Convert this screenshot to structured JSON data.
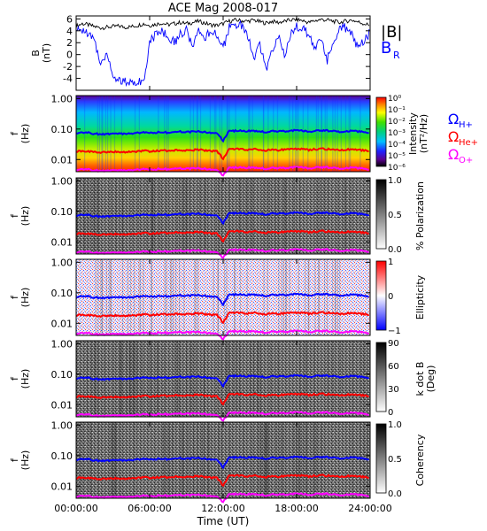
{
  "chart_data": [
    {
      "type": "line",
      "title": "ACE Mag 2008-017",
      "ylabel": "B",
      "yunit": "(nT)",
      "ylim": [
        -6,
        6.5
      ],
      "yticks": [
        "6",
        "4",
        "2",
        "0",
        "-2",
        "-4"
      ],
      "xlim_hours": [
        0,
        24
      ],
      "series": [
        {
          "name": "|B|",
          "color": "#000000",
          "x": [
            0,
            0.5,
            1,
            1.5,
            2,
            2.5,
            3,
            3.5,
            4,
            4.5,
            5,
            5.5,
            6,
            6.5,
            7,
            7.5,
            8,
            8.5,
            9,
            9.5,
            10,
            10.5,
            11,
            11.5,
            12,
            12.5,
            13,
            13.5,
            14,
            14.5,
            15,
            15.5,
            16,
            16.5,
            17,
            17.5,
            18,
            18.5,
            19,
            19.5,
            20,
            20.5,
            21,
            21.5,
            22,
            22.5,
            23,
            23.5,
            24
          ],
          "values": [
            4.8,
            5.2,
            5.0,
            4.7,
            4.5,
            4.6,
            4.7,
            4.8,
            4.6,
            4.7,
            4.9,
            5.2,
            4.9,
            5.1,
            5.3,
            5.0,
            5.2,
            5.4,
            5.2,
            5.4,
            5.6,
            5.3,
            5.0,
            4.9,
            5.2,
            5.6,
            5.8,
            5.7,
            5.6,
            5.8,
            5.5,
            5.3,
            5.6,
            5.4,
            5.6,
            5.8,
            5.9,
            5.7,
            5.4,
            5.7,
            5.9,
            5.8,
            5.6,
            5.4,
            5.6,
            5.8,
            5.5,
            5.2,
            4.9
          ]
        },
        {
          "name": "B_R",
          "label_main": "B",
          "label_sub": "R",
          "color": "#0000ff",
          "x": [
            0,
            0.5,
            1,
            1.5,
            2,
            2.5,
            3,
            3.5,
            4,
            4.5,
            5,
            5.5,
            6,
            6.5,
            7,
            7.5,
            8,
            8.5,
            9,
            9.5,
            10,
            10.5,
            11,
            11.5,
            12,
            12.5,
            13,
            13.5,
            14,
            14.5,
            15,
            15.5,
            16,
            16.5,
            17,
            17.5,
            18,
            18.5,
            19,
            19.5,
            20,
            20.5,
            21,
            21.5,
            22,
            22.5,
            23,
            23.5,
            24
          ],
          "values": [
            3.8,
            4.2,
            3.6,
            2.2,
            -1.5,
            0.5,
            -3.6,
            -4.3,
            -4.6,
            -4.5,
            -4.4,
            -4.6,
            2.0,
            3.5,
            4.0,
            3.2,
            2.0,
            3.5,
            4.2,
            1.0,
            3.8,
            2.5,
            4.1,
            3.5,
            1.0,
            4.5,
            5.0,
            4.8,
            3.0,
            -0.5,
            1.5,
            -2.5,
            0.5,
            3.5,
            0.0,
            3.2,
            4.8,
            4.2,
            3.5,
            1.0,
            3.0,
            -1.0,
            2.2,
            4.5,
            4.5,
            3.5,
            1.2,
            2.5,
            3.8
          ]
        }
      ]
    },
    {
      "type": "heatmap",
      "ylabel": "f",
      "yunit": "(Hz)",
      "yscale": "log",
      "ylim": [
        0.004,
        1.2
      ],
      "yticks": [
        "1.00",
        "0.10",
        "0.01"
      ],
      "colorbar": {
        "label_line1": "Intensity",
        "label_line2": "(nT²/Hz)",
        "scale": "log",
        "ticks": [
          "10⁰",
          "10⁻¹",
          "10⁻²",
          "10⁻³",
          "10⁻⁴",
          "10⁻⁵",
          "10⁻⁶"
        ],
        "colormap": "rainbow"
      },
      "gyrofrequency_legend": [
        {
          "symbol": "Ω",
          "subscript": "H+",
          "color": "#0000ff"
        },
        {
          "symbol": "Ω",
          "subscript": "He+",
          "color": "#ff0000"
        },
        {
          "symbol": "Ω",
          "subscript": "O+",
          "color": "#ff00ff"
        }
      ]
    },
    {
      "type": "heatmap",
      "ylabel": "f",
      "yunit": "(Hz)",
      "yscale": "log",
      "yticks": [
        "1.00",
        "0.10",
        "0.01"
      ],
      "colorbar": {
        "label_line1": "% Polarization",
        "label_line2": "",
        "ticks": [
          "1.0",
          "0.5",
          "0.0"
        ],
        "colormap": "gray"
      }
    },
    {
      "type": "heatmap",
      "ylabel": "f",
      "yunit": "(Hz)",
      "yscale": "log",
      "yticks": [
        "1.00",
        "0.10",
        "0.01"
      ],
      "colorbar": {
        "label_line1": "Ellipticity",
        "label_line2": "",
        "ticks": [
          "1",
          "0",
          "−1"
        ],
        "colormap": "bwr"
      }
    },
    {
      "type": "heatmap",
      "ylabel": "f",
      "yunit": "(Hz)",
      "yscale": "log",
      "yticks": [
        "1.00",
        "0.10",
        "0.01"
      ],
      "colorbar": {
        "label_line1": "k dot B",
        "label_line2": "(Deg)",
        "ticks": [
          "90",
          "60",
          "30",
          "0"
        ],
        "colormap": "gray"
      }
    },
    {
      "type": "heatmap",
      "ylabel": "f",
      "yunit": "(Hz)",
      "yscale": "log",
      "yticks": [
        "1.00",
        "0.10",
        "0.01"
      ],
      "colorbar": {
        "label_line1": "Coherency",
        "label_line2": "",
        "ticks": [
          "1.0",
          "0.5",
          "0.0"
        ],
        "colormap": "gray"
      },
      "xlabel": "Time (UT)",
      "xticks": [
        "00:00:00",
        "06:00:00",
        "12:00:00",
        "18:00:00",
        "24:00:00"
      ]
    }
  ],
  "gyro_lines": {
    "x_hours": [
      0,
      0.5,
      1,
      1.5,
      2,
      2.5,
      3,
      3.5,
      4,
      4.5,
      5,
      5.5,
      6,
      6.5,
      7,
      7.5,
      8,
      8.5,
      9,
      9.5,
      10,
      10.5,
      11,
      11.5,
      12,
      12.5,
      13,
      13.5,
      14,
      14.5,
      15,
      15.5,
      16,
      16.5,
      17,
      17.5,
      18,
      18.5,
      19,
      19.5,
      20,
      20.5,
      21,
      21.5,
      22,
      22.5,
      23,
      23.5,
      24
    ],
    "H_plus_hz": [
      0.072,
      0.078,
      0.075,
      0.07,
      0.068,
      0.069,
      0.071,
      0.072,
      0.07,
      0.071,
      0.074,
      0.078,
      0.074,
      0.077,
      0.08,
      0.076,
      0.079,
      0.082,
      0.079,
      0.082,
      0.085,
      0.08,
      0.076,
      0.074,
      0.04,
      0.085,
      0.088,
      0.087,
      0.085,
      0.088,
      0.083,
      0.08,
      0.085,
      0.082,
      0.085,
      0.088,
      0.09,
      0.087,
      0.082,
      0.087,
      0.09,
      0.088,
      0.085,
      0.082,
      0.085,
      0.088,
      0.083,
      0.079,
      0.074
    ],
    "He_plus_hz": [
      0.018,
      0.0195,
      0.0188,
      0.0175,
      0.017,
      0.0172,
      0.0178,
      0.018,
      0.0175,
      0.0178,
      0.0185,
      0.0195,
      0.0185,
      0.0192,
      0.02,
      0.019,
      0.0198,
      0.0205,
      0.0198,
      0.0205,
      0.0212,
      0.02,
      0.019,
      0.0185,
      0.01,
      0.0212,
      0.022,
      0.0218,
      0.0212,
      0.022,
      0.0208,
      0.02,
      0.0212,
      0.0205,
      0.0212,
      0.022,
      0.0225,
      0.0218,
      0.0205,
      0.0218,
      0.0225,
      0.022,
      0.0212,
      0.0205,
      0.0212,
      0.022,
      0.0208,
      0.0198,
      0.0185
    ],
    "O_plus_hz": [
      0.0045,
      0.0049,
      0.0047,
      0.0044,
      0.0043,
      0.0043,
      0.0045,
      0.0045,
      0.0044,
      0.0045,
      0.0046,
      0.0049,
      0.0046,
      0.0048,
      0.005,
      0.0048,
      0.005,
      0.0051,
      0.005,
      0.0051,
      0.0053,
      0.005,
      0.0048,
      0.0046,
      0.003,
      0.0053,
      0.0055,
      0.0055,
      0.0053,
      0.0055,
      0.0052,
      0.005,
      0.0053,
      0.0051,
      0.0053,
      0.0055,
      0.0056,
      0.0055,
      0.0051,
      0.0055,
      0.0056,
      0.0055,
      0.0053,
      0.0051,
      0.0053,
      0.0055,
      0.0052,
      0.005,
      0.0046
    ]
  }
}
